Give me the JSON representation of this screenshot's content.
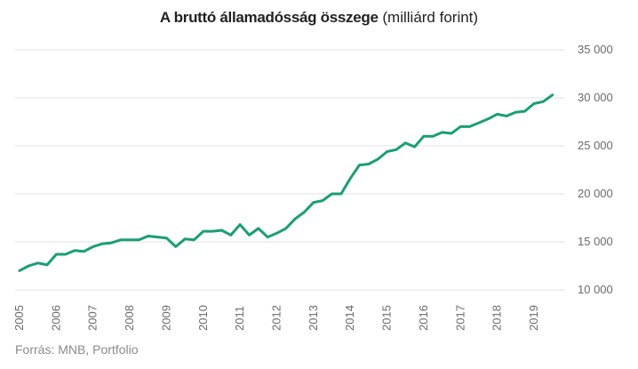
{
  "title": "A bruttó államadósság összege",
  "subtitle": "(milliárd forint)",
  "source": "Forrás: MNB, Portfolio",
  "colors": {
    "line": "#1a9e77",
    "grid": "#e2e2e2",
    "axis_text": "#6b6b6b"
  },
  "chart_data": {
    "type": "line",
    "title": "A bruttó államadósság összege",
    "subtitle": "(milliárd forint)",
    "xlabel": "",
    "ylabel": "",
    "x_tick_labels": [
      "2005",
      "2006",
      "2007",
      "2008",
      "2009",
      "2010",
      "2011",
      "2012",
      "2013",
      "2014",
      "2015",
      "2016",
      "2017",
      "2018",
      "2019"
    ],
    "y_tick_labels": [
      "10 000",
      "15 000",
      "20 000",
      "25 000",
      "30 000",
      "35 000"
    ],
    "y_ticks": [
      10000,
      15000,
      20000,
      25000,
      30000,
      35000
    ],
    "ylim": [
      10000,
      35000
    ],
    "xlim": [
      2005.0,
      2019.75
    ],
    "grid": true,
    "legend": "none",
    "series": [
      {
        "x": [
          2005.0,
          2005.25,
          2005.5,
          2005.75,
          2006.0,
          2006.25,
          2006.5,
          2006.75,
          2007.0,
          2007.25,
          2007.5,
          2007.75,
          2008.0,
          2008.25,
          2008.5,
          2008.75,
          2009.0,
          2009.25,
          2009.5,
          2009.75,
          2010.0,
          2010.25,
          2010.5,
          2010.75,
          2011.0,
          2011.25,
          2011.5,
          2011.75,
          2012.0,
          2012.25,
          2012.5,
          2012.75,
          2013.0,
          2013.25,
          2013.5,
          2013.75,
          2014.0,
          2014.25,
          2014.5,
          2014.75,
          2015.0,
          2015.25,
          2015.5,
          2015.75,
          2016.0,
          2016.25,
          2016.5,
          2016.75,
          2017.0,
          2017.25,
          2017.5,
          2017.75,
          2018.0,
          2018.25,
          2018.5,
          2018.75,
          2019.0,
          2019.25,
          2019.5
        ],
        "values": [
          12000,
          12500,
          12800,
          12600,
          13700,
          13700,
          14100,
          14000,
          14500,
          14800,
          14900,
          15200,
          15200,
          15200,
          15600,
          15500,
          15400,
          14500,
          15300,
          15200,
          16100,
          16100,
          16200,
          15700,
          16800,
          15700,
          16400,
          15500,
          15900,
          16400,
          17400,
          18100,
          19100,
          19300,
          20000,
          20000,
          21600,
          23000,
          23100,
          23600,
          24400,
          24600,
          25300,
          24900,
          26000,
          26000,
          26400,
          26300,
          27000,
          27000,
          27400,
          27800,
          28300,
          28100,
          28500,
          28600,
          29400,
          29600,
          30300
        ]
      }
    ]
  }
}
